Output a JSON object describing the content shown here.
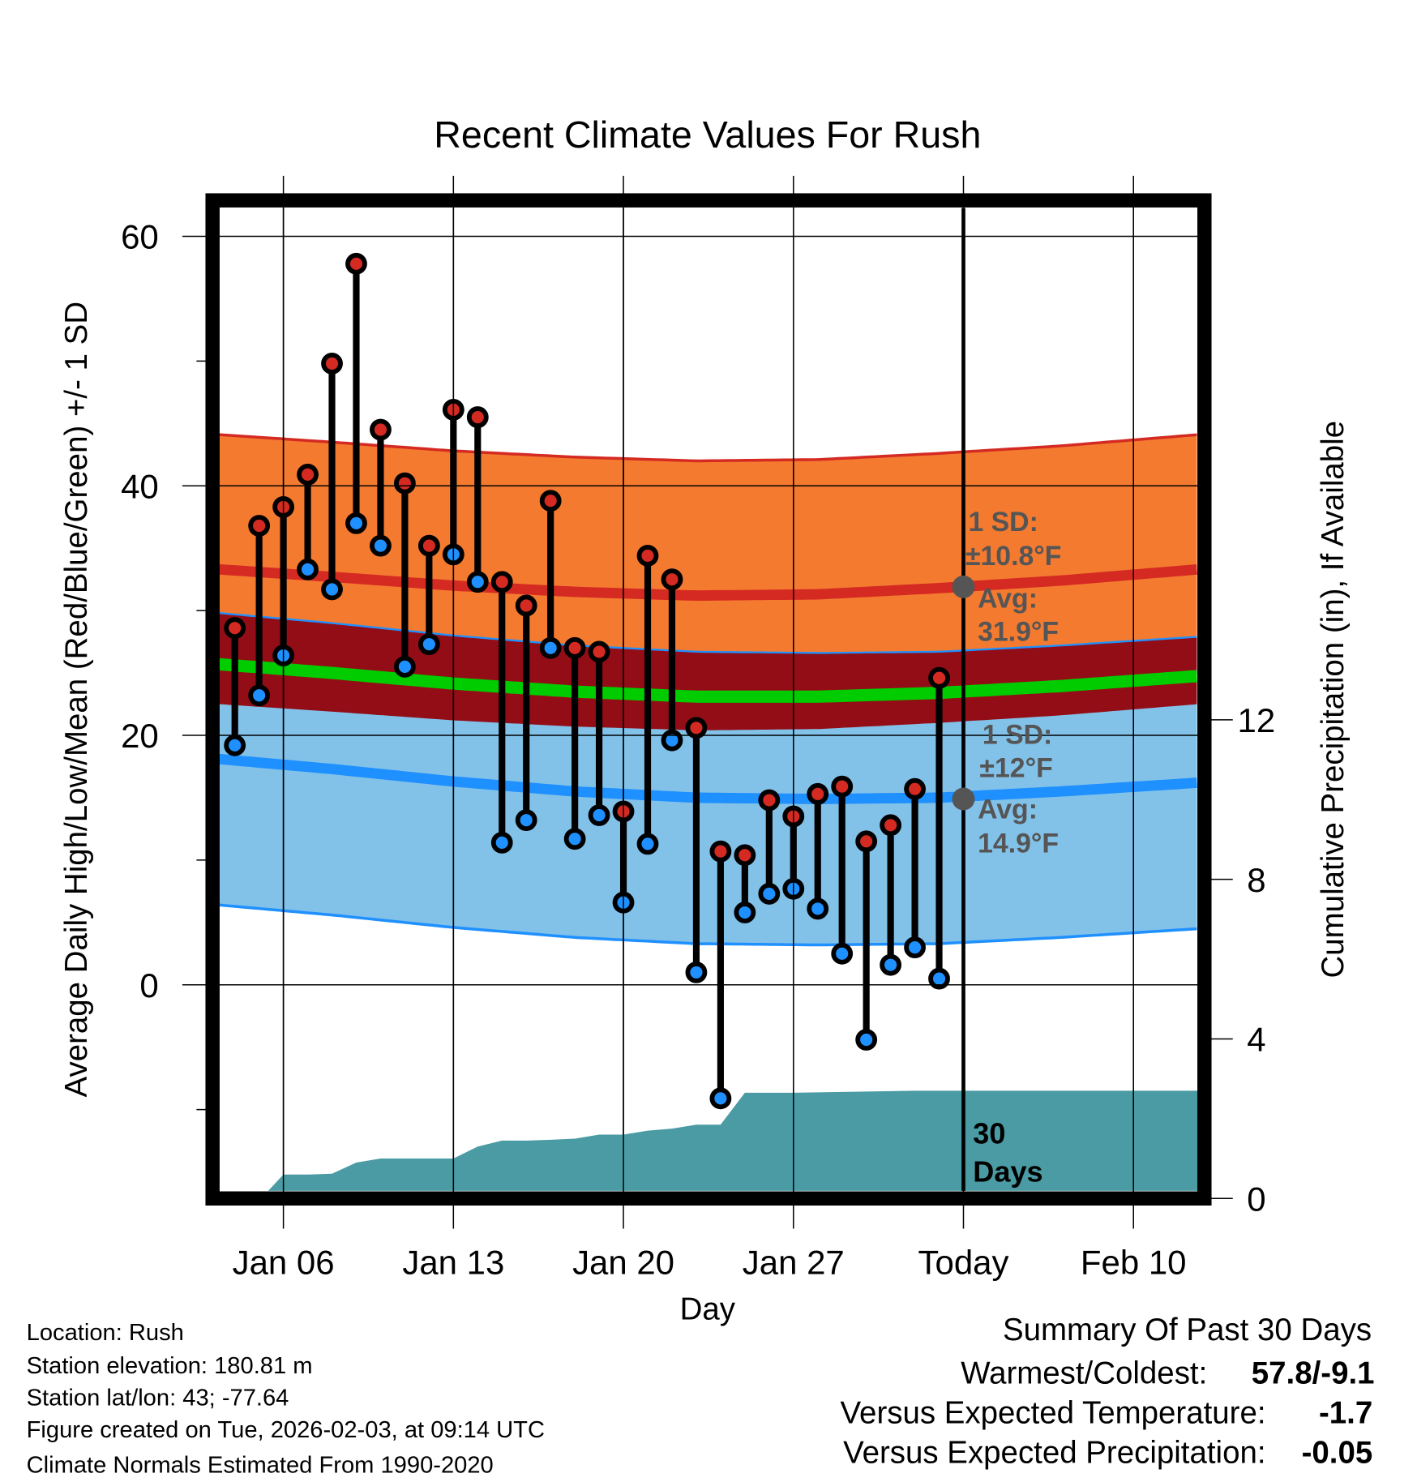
{
  "chart_data": {
    "type": "line",
    "title": "Recent Climate Values For Rush",
    "xlabel": "Day",
    "ylabel": "Average Daily High/Low/Mean (Red/Blue/Green) +/- 1 SD",
    "y2label": "Cumulative Precipitation (in), If Available",
    "ylim": [
      -16.5,
      62.3
    ],
    "y2lim": [
      0,
      24.6
    ],
    "grid": true,
    "y_ticks": [
      60,
      40,
      20,
      0
    ],
    "y_ticks_labels": [
      "60",
      "40",
      "20",
      "0"
    ],
    "y_minor_ticks": [
      50,
      30,
      10,
      -10
    ],
    "y2_ticks": [
      0,
      4,
      8,
      12
    ],
    "y2_ticks_labels": [
      "0",
      "4",
      "8",
      "12"
    ],
    "x_unit": "day of January (Jan 1 = 1; Feb 3 = 34)",
    "xlim": [
      3.36,
      43.65
    ],
    "x_ticks": [
      6,
      13,
      20,
      27,
      34,
      41
    ],
    "x_ticks_labels": [
      "Jan 06",
      "Jan 13",
      "Jan 20",
      "Jan 27",
      "Today",
      "Feb 10"
    ],
    "today": 34,
    "days": [
      4,
      5,
      6,
      7,
      8,
      9,
      10,
      11,
      12,
      13,
      14,
      15,
      16,
      17,
      18,
      19,
      20,
      21,
      22,
      23,
      24,
      25,
      26,
      27,
      28,
      29,
      30,
      31,
      32,
      33
    ],
    "series": [
      {
        "name": "Daily High",
        "color": "#D42A22",
        "values": [
          28.6,
          36.8,
          38.3,
          40.9,
          49.8,
          57.8,
          44.5,
          40.2,
          35.2,
          46.1,
          45.5,
          32.3,
          30.4,
          38.8,
          27.0,
          26.7,
          13.9,
          34.4,
          32.5,
          20.6,
          10.7,
          10.4,
          14.8,
          13.5,
          15.3,
          15.9,
          11.5,
          12.8,
          15.7,
          24.6
        ]
      },
      {
        "name": "Daily Low",
        "color": "#1E90FF",
        "values": [
          19.2,
          23.2,
          26.4,
          33.3,
          31.7,
          37.0,
          35.2,
          25.5,
          27.3,
          34.5,
          32.3,
          11.4,
          13.2,
          27.0,
          11.7,
          13.6,
          6.6,
          11.3,
          19.6,
          1.0,
          -9.1,
          5.8,
          7.3,
          7.7,
          6.1,
          2.5,
          -4.4,
          1.6,
          3.0,
          0.5
        ]
      },
      {
        "name": "Cumulative Precipitation (in)",
        "color": "#4A9BA3",
        "axis": "right",
        "values": [
          0,
          0,
          0.6,
          0.6,
          0.62,
          0.9,
          1.0,
          1.0,
          1.0,
          1.0,
          1.3,
          1.45,
          1.45,
          1.47,
          1.5,
          1.6,
          1.6,
          1.7,
          1.75,
          1.85,
          1.85,
          2.65,
          2.65,
          2.65,
          2.66,
          2.67,
          2.68,
          2.69,
          2.7,
          2.7
        ]
      }
    ],
    "normals": {
      "days": [
        3.36,
        8,
        13,
        18,
        23,
        28,
        33,
        38,
        43.65
      ],
      "high_mean": [
        33.3,
        32.7,
        32.0,
        31.5,
        31.2,
        31.3,
        31.8,
        32.4,
        33.3
      ],
      "high_sd": 10.8,
      "low_mean": [
        18.1,
        17.3,
        16.3,
        15.5,
        15.0,
        14.9,
        15.0,
        15.5,
        16.2
      ],
      "low_sd": 11.7,
      "colors": {
        "high_band": "#F47A30",
        "high_line": "#D42A22",
        "low_band": "#82C1E8",
        "low_line": "#1E90FF",
        "overlap": "#930D16",
        "mean_line": "#00CC00"
      }
    },
    "annotations": {
      "high_sd_label": "1 SD:",
      "high_sd_value": "±10.8°F",
      "high_avg_label": "Avg:",
      "high_avg_value": "31.9°F",
      "high_avg": 31.9,
      "low_sd_label": "1 SD:",
      "low_sd_value": "±12°F",
      "low_avg_label": "Avg:",
      "low_avg_value": "14.9°F",
      "low_avg": 14.9,
      "period_number": "30",
      "period_unit": "Days"
    }
  },
  "footer": {
    "location": "Location: Rush",
    "elevation": "Station elevation: 180.81 m",
    "latlon": "Station lat/lon: 43; -77.64",
    "created": "Figure created on Tue, 2026-02-03, at 09:14 UTC",
    "normals": "Climate Normals Estimated From 1990-2020"
  },
  "summary": {
    "title": "Summary Of Past 30 Days",
    "warmest_coldest_label": "Warmest/Coldest:",
    "warmest_coldest_value": "57.8/-9.1",
    "temp_label": "Versus Expected Temperature:",
    "temp_value": "-1.7",
    "temp_color": "#1E90FF",
    "precip_label": "Versus Expected Precipitation:",
    "precip_value": "-0.05",
    "precip_color": "#A0522D"
  }
}
